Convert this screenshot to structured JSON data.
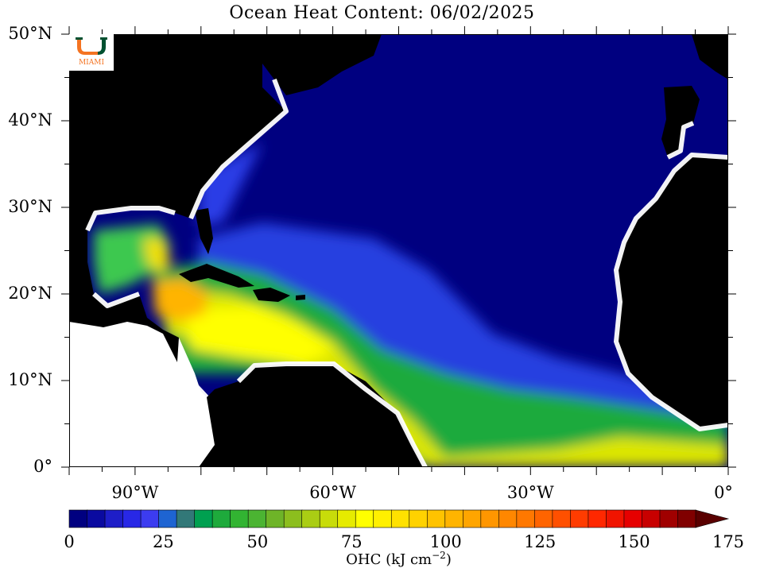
{
  "title": "Ocean Heat Content: 06/02/2025",
  "logo": {
    "text": "MIAMI",
    "colors": {
      "green": "#005030",
      "orange": "#f47321"
    }
  },
  "map": {
    "extent": {
      "lon_min": -100,
      "lon_max": 0,
      "lat_min": 0,
      "lat_max": 50
    },
    "land_color": "#000000",
    "ocean_base_color": "#000080",
    "lat_ticks": [
      {
        "value": 50,
        "label": "50°N"
      },
      {
        "value": 40,
        "label": "40°N"
      },
      {
        "value": 30,
        "label": "30°N"
      },
      {
        "value": 20,
        "label": "20°N"
      },
      {
        "value": 10,
        "label": "10°N"
      },
      {
        "value": 0,
        "label": "0°"
      }
    ],
    "lon_ticks": [
      {
        "value": -90,
        "label": "90°W"
      },
      {
        "value": -60,
        "label": "60°W"
      },
      {
        "value": -30,
        "label": "30°W"
      },
      {
        "value": 0,
        "label": "0°"
      }
    ]
  },
  "colorbar": {
    "min": 0,
    "max": 175,
    "step": 5,
    "title_prefix": "OHC (kJ cm",
    "title_exp": "−2",
    "title_suffix": ")",
    "colors": [
      "#000080",
      "#0a0aa0",
      "#1e1ec8",
      "#2828e6",
      "#3c3cf0",
      "#1e64d2",
      "#327878",
      "#00a050",
      "#1eaa3c",
      "#32b432",
      "#4bb432",
      "#6eb428",
      "#8cbe1e",
      "#aacd14",
      "#c8dc0a",
      "#e6eb00",
      "#ffff00",
      "#fff000",
      "#ffe100",
      "#ffd200",
      "#ffc300",
      "#ffb400",
      "#ffa500",
      "#ff9600",
      "#ff8700",
      "#ff7800",
      "#ff6400",
      "#ff5000",
      "#ff3c00",
      "#ff2800",
      "#f01400",
      "#e60000",
      "#c80000",
      "#a00000",
      "#800000",
      "#5a0000"
    ],
    "tick_labels": [
      {
        "value": 0,
        "label": "0"
      },
      {
        "value": 25,
        "label": "25"
      },
      {
        "value": 50,
        "label": "50"
      },
      {
        "value": 75,
        "label": "75"
      },
      {
        "value": 100,
        "label": "100"
      },
      {
        "value": 125,
        "label": "125"
      },
      {
        "value": 150,
        "label": "150"
      },
      {
        "value": 175,
        "label": "175"
      }
    ]
  }
}
